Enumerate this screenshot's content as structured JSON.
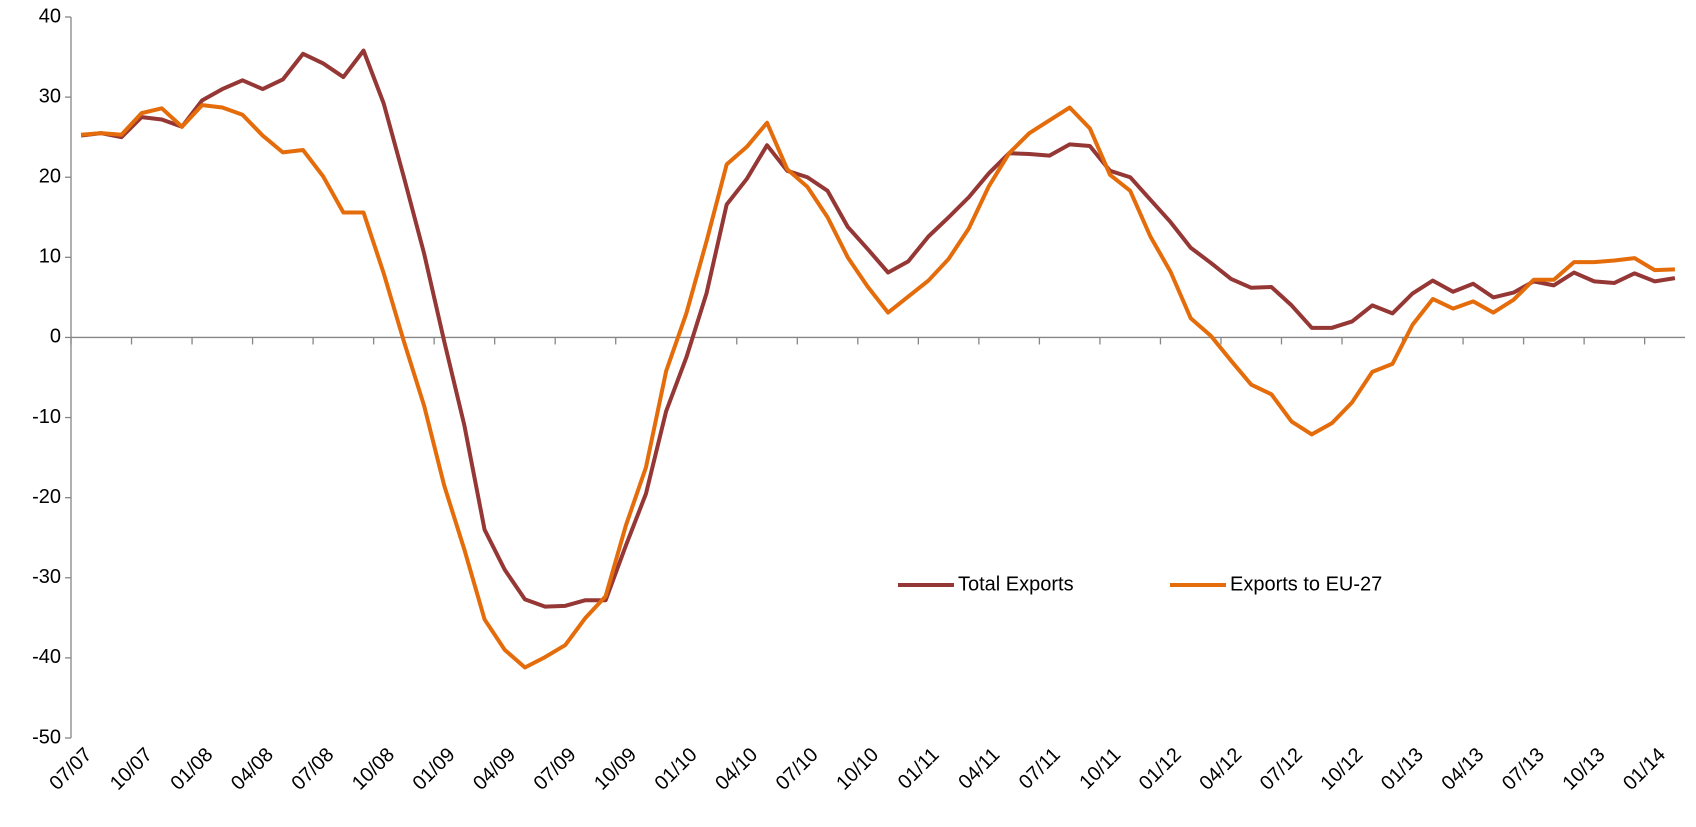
{
  "chart_data": {
    "type": "line",
    "categories": [
      "07/07",
      null,
      null,
      "10/07",
      null,
      null,
      "01/08",
      null,
      null,
      "04/08",
      null,
      null,
      "07/08",
      null,
      null,
      "10/08",
      null,
      null,
      "01/09",
      null,
      null,
      "04/09",
      null,
      null,
      "07/09",
      null,
      null,
      "10/09",
      null,
      null,
      "01/10",
      null,
      null,
      "04/10",
      null,
      null,
      "07/10",
      null,
      null,
      "10/10",
      null,
      null,
      "01/11",
      null,
      null,
      "04/11",
      null,
      null,
      "07/11",
      null,
      null,
      "10/11",
      null,
      null,
      "01/12",
      null,
      null,
      "04/12",
      null,
      null,
      "07/12",
      null,
      null,
      "10/12",
      null,
      null,
      "01/13",
      null,
      null,
      "04/13",
      null,
      null,
      "07/13",
      null,
      null,
      "10/13",
      null,
      null,
      "01/14",
      null
    ],
    "series": [
      {
        "name": "Total Exports",
        "color": "#953735",
        "values": [
          25.2,
          25.5,
          25.0,
          27.5,
          27.2,
          26.3,
          29.6,
          31.0,
          32.1,
          31.0,
          32.2,
          35.4,
          34.2,
          32.5,
          35.8,
          29.2,
          20.0,
          10.5,
          -0.5,
          -11,
          -24,
          -29,
          -32.7,
          -33.6,
          -33.5,
          -32.8,
          -32.8,
          -26,
          -19.5,
          -9.2,
          -2.5,
          5.5,
          16.6,
          19.8,
          24.0,
          20.8,
          20.0,
          18.3,
          13.8,
          11.0,
          8.1,
          9.5,
          12.6,
          15.0,
          17.5,
          20.5,
          23.0,
          22.9,
          22.7,
          24.1,
          23.9,
          20.8,
          20.0,
          17.2,
          14.4,
          11.2,
          9.3,
          7.3,
          6.2,
          6.3,
          4.0,
          1.2,
          1.2,
          2.0,
          4.0,
          3.0,
          5.5,
          7.1,
          5.7,
          6.7,
          5.0,
          5.6,
          7.0,
          6.5,
          8.1,
          7.0,
          6.8,
          8.0,
          7.0,
          7.4
        ]
      },
      {
        "name": "Exports to EU-27",
        "color": "#e46c0a",
        "values": [
          25.3,
          25.5,
          25.3,
          28.0,
          28.6,
          26.3,
          29.0,
          28.7,
          27.8,
          25.2,
          23.1,
          23.4,
          20.1,
          15.6,
          15.6,
          8.0,
          -0.5,
          -8.5,
          -18.5,
          -26.5,
          -35.2,
          -39.0,
          -41.2,
          -39.9,
          -38.4,
          -35.0,
          -32.3,
          -23.5,
          -16.2,
          -4.2,
          3.0,
          12.0,
          21.6,
          23.8,
          26.8,
          21.0,
          18.8,
          15.0,
          10.0,
          6.3,
          3.1,
          5.1,
          7.1,
          9.8,
          13.6,
          18.9,
          23.0,
          25.5,
          27.1,
          28.7,
          26.1,
          20.3,
          18.3,
          12.6,
          8.2,
          2.4,
          0.2,
          -2.9,
          -5.9,
          -7.1,
          -10.5,
          -12.1,
          -10.7,
          -8.1,
          -4.3,
          -3.3,
          1.6,
          4.8,
          3.6,
          4.5,
          3.1,
          4.7,
          7.2,
          7.2,
          9.4,
          9.4,
          9.6,
          9.9,
          8.4,
          8.5
        ]
      }
    ],
    "ylim": [
      -50,
      40
    ],
    "yticks": [
      -50,
      -40,
      -30,
      -20,
      -10,
      0,
      10,
      20,
      30,
      40
    ],
    "grid": false
  }
}
